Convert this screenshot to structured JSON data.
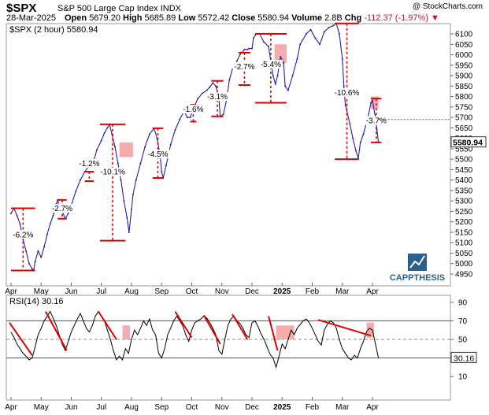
{
  "header": {
    "symbol": "$SPX",
    "name": "S&P 500 Large Cap Index",
    "exchange": "INDX",
    "source": "@ StockCharts.com",
    "date": "28-Mar-2025",
    "open_label": "Open",
    "open": "5679.20",
    "high_label": "High",
    "high": "5685.89",
    "low_label": "Low",
    "low": "5572.42",
    "close_label": "Close",
    "close": "5580.94",
    "volume_label": "Volume",
    "volume": "2.8B",
    "chg_label": "Chg",
    "chg": "-112.37 (-1.97%)",
    "chg_marker": "▼"
  },
  "colors": {
    "price": "#1f1fa8",
    "annotation": "#e00000",
    "highlight": "#f4a3a3",
    "rsi": "#000000",
    "grid": "#bbbbbb",
    "logo_blue": "#2b5f8c"
  },
  "logo": {
    "text": "CAPPTHESIS"
  },
  "chart_data": [
    {
      "type": "line",
      "title": "$SPX (2 hour) 5580.94",
      "series_name": "$SPX (2 hour)",
      "last_value": 5580.94,
      "last_label": "5580.94",
      "ylim": [
        4920,
        6180
      ],
      "yticks": [
        4950,
        5000,
        5050,
        5100,
        5150,
        5200,
        5250,
        5300,
        5350,
        5400,
        5450,
        5500,
        5550,
        5600,
        5650,
        5700,
        5750,
        5800,
        5850,
        5900,
        5950,
        6000,
        6050,
        6100,
        6150
      ],
      "xticks": [
        {
          "label": "Apr",
          "t": 0
        },
        {
          "label": "May",
          "t": 1
        },
        {
          "label": "Jun",
          "t": 2
        },
        {
          "label": "Jul",
          "t": 3
        },
        {
          "label": "Aug",
          "t": 4
        },
        {
          "label": "Sep",
          "t": 5
        },
        {
          "label": "Oct",
          "t": 6
        },
        {
          "label": "Nov",
          "t": 7
        },
        {
          "label": "Dec",
          "t": 8
        },
        {
          "label": "2025",
          "t": 9,
          "bold": true
        },
        {
          "label": "Feb",
          "t": 10
        },
        {
          "label": "Mar",
          "t": 11
        },
        {
          "label": "Apr",
          "t": 12
        }
      ],
      "points": [
        [
          0,
          5240
        ],
        [
          0.1,
          5265
        ],
        [
          0.2,
          5230
        ],
        [
          0.3,
          5190
        ],
        [
          0.4,
          5115
        ],
        [
          0.5,
          5060
        ],
        [
          0.6,
          5000
        ],
        [
          0.7,
          4975
        ],
        [
          0.75,
          4967
        ],
        [
          0.8,
          5010
        ],
        [
          0.9,
          5060
        ],
        [
          1.0,
          5030
        ],
        [
          1.1,
          5080
        ],
        [
          1.2,
          5140
        ],
        [
          1.3,
          5190
        ],
        [
          1.4,
          5230
        ],
        [
          1.5,
          5285
        ],
        [
          1.55,
          5305
        ],
        [
          1.6,
          5270
        ],
        [
          1.7,
          5250
        ],
        [
          1.8,
          5215
        ],
        [
          1.9,
          5240
        ],
        [
          2.0,
          5280
        ],
        [
          2.15,
          5345
        ],
        [
          2.3,
          5400
        ],
        [
          2.45,
          5440
        ],
        [
          2.6,
          5470
        ],
        [
          2.75,
          5495
        ],
        [
          2.85,
          5545
        ],
        [
          3.0,
          5590
        ],
        [
          3.1,
          5625
        ],
        [
          3.2,
          5650
        ],
        [
          3.27,
          5667
        ],
        [
          3.35,
          5620
        ],
        [
          3.45,
          5560
        ],
        [
          3.55,
          5480
        ],
        [
          3.65,
          5400
        ],
        [
          3.75,
          5300
        ],
        [
          3.85,
          5220
        ],
        [
          3.92,
          5150
        ],
        [
          4.0,
          5260
        ],
        [
          4.05,
          5330
        ],
        [
          4.15,
          5400
        ],
        [
          4.3,
          5480
        ],
        [
          4.45,
          5560
        ],
        [
          4.6,
          5620
        ],
        [
          4.75,
          5648
        ],
        [
          4.85,
          5600
        ],
        [
          4.95,
          5520
        ],
        [
          5.0,
          5440
        ],
        [
          5.05,
          5410
        ],
        [
          5.15,
          5470
        ],
        [
          5.3,
          5570
        ],
        [
          5.45,
          5640
        ],
        [
          5.6,
          5690
        ],
        [
          5.75,
          5730
        ],
        [
          5.85,
          5700
        ],
        [
          5.95,
          5700
        ],
        [
          6.05,
          5740
        ],
        [
          6.2,
          5790
        ],
        [
          6.35,
          5815
        ],
        [
          6.5,
          5830
        ],
        [
          6.6,
          5845
        ],
        [
          6.7,
          5865
        ],
        [
          6.8,
          5850
        ],
        [
          6.9,
          5790
        ],
        [
          6.95,
          5705
        ],
        [
          7.05,
          5715
        ],
        [
          7.15,
          5780
        ],
        [
          7.25,
          5880
        ],
        [
          7.35,
          5930
        ],
        [
          7.5,
          5970
        ],
        [
          7.6,
          6000
        ],
        [
          7.75,
          6025
        ],
        [
          7.85,
          6025
        ],
        [
          7.9,
          6030
        ],
        [
          8.0,
          6030
        ],
        [
          8.05,
          6080
        ],
        [
          8.15,
          6100
        ],
        [
          8.25,
          6100
        ],
        [
          8.4,
          6060
        ],
        [
          8.55,
          6040
        ],
        [
          8.7,
          5900
        ],
        [
          8.78,
          5860
        ],
        [
          8.85,
          5900
        ],
        [
          8.95,
          5990
        ],
        [
          9.05,
          5960
        ],
        [
          9.1,
          5850
        ],
        [
          9.2,
          5830
        ],
        [
          9.35,
          5900
        ],
        [
          9.5,
          5980
        ],
        [
          9.6,
          6050
        ],
        [
          9.8,
          6100
        ],
        [
          9.95,
          6120
        ],
        [
          10.1,
          6080
        ],
        [
          10.25,
          6050
        ],
        [
          10.4,
          6110
        ],
        [
          10.55,
          6130
        ],
        [
          10.7,
          6140
        ],
        [
          10.8,
          6150
        ],
        [
          10.9,
          6100
        ],
        [
          11.0,
          5980
        ],
        [
          11.05,
          5850
        ],
        [
          11.1,
          5760
        ],
        [
          11.25,
          5670
        ],
        [
          11.35,
          5600
        ],
        [
          11.45,
          5540
        ],
        [
          11.53,
          5505
        ],
        [
          11.6,
          5580
        ],
        [
          11.7,
          5620
        ],
        [
          11.85,
          5700
        ],
        [
          11.95,
          5770
        ],
        [
          12.0,
          5780
        ],
        [
          12.1,
          5700
        ],
        [
          12.15,
          5640
        ],
        [
          12.2,
          5581
        ]
      ],
      "annotations": [
        {
          "label": "-6.2%",
          "t0": 0,
          "t1": 0.8,
          "top": 5265,
          "bottom": 4967,
          "dashed": true,
          "label_value": 5130
        },
        {
          "label": "-2.7%",
          "t0": 1.55,
          "t1": 1.85,
          "top": 5305,
          "bottom": 5215,
          "dashed": true,
          "label_value": 5255
        },
        {
          "label": "-1.2%",
          "t0": 2.45,
          "t1": 2.75,
          "top": 5440,
          "bottom": 5395,
          "dashed": true,
          "label_value": 5470
        },
        {
          "label": "-10.1%",
          "t0": 2.95,
          "t1": 3.8,
          "top": 5667,
          "bottom": 5110,
          "dashed": true,
          "label_value": 5430
        },
        {
          "label": "-4.5%",
          "t0": 4.7,
          "t1": 5.05,
          "top": 5648,
          "bottom": 5410,
          "dashed": true,
          "label_value": 5515
        },
        {
          "label": "-1.6%",
          "t0": 5.95,
          "t1": 6.15,
          "top": 5760,
          "bottom": 5680,
          "dashed": true,
          "label_value": 5730
        },
        {
          "label": "-3.1%",
          "t0": 6.65,
          "t1": 7.05,
          "top": 5875,
          "bottom": 5705,
          "dashed": true,
          "label_value": 5790
        },
        {
          "label": "-2.7%",
          "t0": 7.55,
          "t1": 7.95,
          "top": 6010,
          "bottom": 5855,
          "dashed": true,
          "label_value": 5935
        },
        {
          "label": "-5.4%",
          "t0": 8.1,
          "t1": 9.15,
          "top": 6100,
          "bottom": 5770,
          "dashed": true,
          "label_value": 5945
        },
        {
          "label": "-10.6%",
          "t0": 10.75,
          "t1": 11.55,
          "top": 6150,
          "bottom": 5500,
          "dashed": true,
          "label_value": 5810
        },
        {
          "label": "-3.7%",
          "t0": 11.95,
          "t1": 12.3,
          "top": 5790,
          "bottom": 5580,
          "dashed": true,
          "label_value": 5675
        }
      ],
      "highlights": [
        {
          "t0": 3.6,
          "t1": 4.05,
          "y0": 5510,
          "y1": 5580
        },
        {
          "t0": 8.75,
          "t1": 9.15,
          "y0": 5960,
          "y1": 6050
        },
        {
          "t0": 11.95,
          "t1": 12.2,
          "y0": 5740,
          "y1": 5800
        }
      ]
    },
    {
      "type": "line",
      "title": "RSI(14) 30.16",
      "series_name": "RSI(14)",
      "last_value": 30.16,
      "last_label": "30.16",
      "ylim": [
        0,
        95
      ],
      "yticks": [
        10,
        30,
        50,
        70,
        90
      ],
      "levels": [
        30,
        50,
        70
      ],
      "points": [
        [
          0,
          58
        ],
        [
          0.1,
          52
        ],
        [
          0.2,
          45
        ],
        [
          0.3,
          40
        ],
        [
          0.4,
          35
        ],
        [
          0.5,
          32
        ],
        [
          0.6,
          28
        ],
        [
          0.7,
          30
        ],
        [
          0.8,
          42
        ],
        [
          0.9,
          55
        ],
        [
          1.0,
          62
        ],
        [
          1.1,
          70
        ],
        [
          1.2,
          75
        ],
        [
          1.3,
          80
        ],
        [
          1.4,
          73
        ],
        [
          1.5,
          65
        ],
        [
          1.6,
          55
        ],
        [
          1.7,
          45
        ],
        [
          1.8,
          38
        ],
        [
          1.9,
          48
        ],
        [
          2.0,
          58
        ],
        [
          2.1,
          65
        ],
        [
          2.2,
          72
        ],
        [
          2.3,
          78
        ],
        [
          2.4,
          70
        ],
        [
          2.5,
          62
        ],
        [
          2.6,
          58
        ],
        [
          2.7,
          65
        ],
        [
          2.8,
          75
        ],
        [
          2.9,
          80
        ],
        [
          3.0,
          75
        ],
        [
          3.1,
          70
        ],
        [
          3.2,
          60
        ],
        [
          3.3,
          50
        ],
        [
          3.4,
          38
        ],
        [
          3.5,
          28
        ],
        [
          3.6,
          32
        ],
        [
          3.7,
          28
        ],
        [
          3.8,
          40
        ],
        [
          3.9,
          35
        ],
        [
          4.0,
          50
        ],
        [
          4.1,
          60
        ],
        [
          4.2,
          55
        ],
        [
          4.3,
          62
        ],
        [
          4.4,
          70
        ],
        [
          4.5,
          65
        ],
        [
          4.6,
          72
        ],
        [
          4.7,
          60
        ],
        [
          4.8,
          55
        ],
        [
          4.9,
          35
        ],
        [
          5.0,
          30
        ],
        [
          5.1,
          40
        ],
        [
          5.2,
          55
        ],
        [
          5.3,
          62
        ],
        [
          5.4,
          70
        ],
        [
          5.5,
          75
        ],
        [
          5.6,
          70
        ],
        [
          5.7,
          65
        ],
        [
          5.8,
          55
        ],
        [
          5.9,
          48
        ],
        [
          6.0,
          60
        ],
        [
          6.1,
          68
        ],
        [
          6.2,
          70
        ],
        [
          6.3,
          72
        ],
        [
          6.4,
          75
        ],
        [
          6.5,
          73
        ],
        [
          6.6,
          68
        ],
        [
          6.7,
          62
        ],
        [
          6.8,
          55
        ],
        [
          6.9,
          38
        ],
        [
          7.0,
          34
        ],
        [
          7.1,
          50
        ],
        [
          7.2,
          65
        ],
        [
          7.3,
          72
        ],
        [
          7.4,
          75
        ],
        [
          7.5,
          70
        ],
        [
          7.6,
          67
        ],
        [
          7.7,
          62
        ],
        [
          7.8,
          55
        ],
        [
          7.9,
          52
        ],
        [
          8.0,
          68
        ],
        [
          8.1,
          70
        ],
        [
          8.2,
          64
        ],
        [
          8.3,
          56
        ],
        [
          8.4,
          50
        ],
        [
          8.5,
          42
        ],
        [
          8.6,
          34
        ],
        [
          8.7,
          30
        ],
        [
          8.8,
          20
        ],
        [
          8.9,
          32
        ],
        [
          9.0,
          45
        ],
        [
          9.1,
          40
        ],
        [
          9.2,
          50
        ],
        [
          9.3,
          60
        ],
        [
          9.4,
          55
        ],
        [
          9.5,
          62
        ],
        [
          9.6,
          66
        ],
        [
          9.7,
          70
        ],
        [
          9.8,
          72
        ],
        [
          9.9,
          68
        ],
        [
          10.0,
          62
        ],
        [
          10.1,
          55
        ],
        [
          10.2,
          48
        ],
        [
          10.3,
          44
        ],
        [
          10.4,
          60
        ],
        [
          10.5,
          66
        ],
        [
          10.6,
          70
        ],
        [
          10.7,
          68
        ],
        [
          10.8,
          62
        ],
        [
          10.9,
          50
        ],
        [
          11.0,
          40
        ],
        [
          11.1,
          35
        ],
        [
          11.2,
          30
        ],
        [
          11.3,
          28
        ],
        [
          11.4,
          33
        ],
        [
          11.5,
          30
        ],
        [
          11.6,
          40
        ],
        [
          11.7,
          48
        ],
        [
          11.8,
          58
        ],
        [
          11.9,
          62
        ],
        [
          12.0,
          60
        ],
        [
          12.1,
          45
        ],
        [
          12.2,
          30
        ]
      ],
      "trendlines": [
        {
          "t0": -0.05,
          "v0": 68,
          "t1": 0.7,
          "v1": 33
        },
        {
          "t0": 1.15,
          "v0": 80,
          "t1": 1.85,
          "v1": 38
        },
        {
          "t0": 2.9,
          "v0": 80,
          "t1": 3.5,
          "v1": 50
        },
        {
          "t0": 5.45,
          "v0": 80,
          "t1": 6.0,
          "v1": 52
        },
        {
          "t0": 6.4,
          "v0": 76,
          "t1": 6.95,
          "v1": 45
        },
        {
          "t0": 7.35,
          "v0": 77,
          "t1": 7.85,
          "v1": 50
        },
        {
          "t0": 8.55,
          "v0": 75,
          "t1": 8.85,
          "v1": 38
        },
        {
          "t0": 10.2,
          "v0": 71,
          "t1": 11.95,
          "v1": 54
        }
      ],
      "highlights": [
        {
          "t0": 3.7,
          "t1": 3.95,
          "v0": 50,
          "v1": 65
        },
        {
          "t0": 8.8,
          "t1": 9.4,
          "v0": 50,
          "v1": 65
        },
        {
          "t0": 11.8,
          "t1": 12.05,
          "v0": 52,
          "v1": 68
        }
      ]
    }
  ]
}
